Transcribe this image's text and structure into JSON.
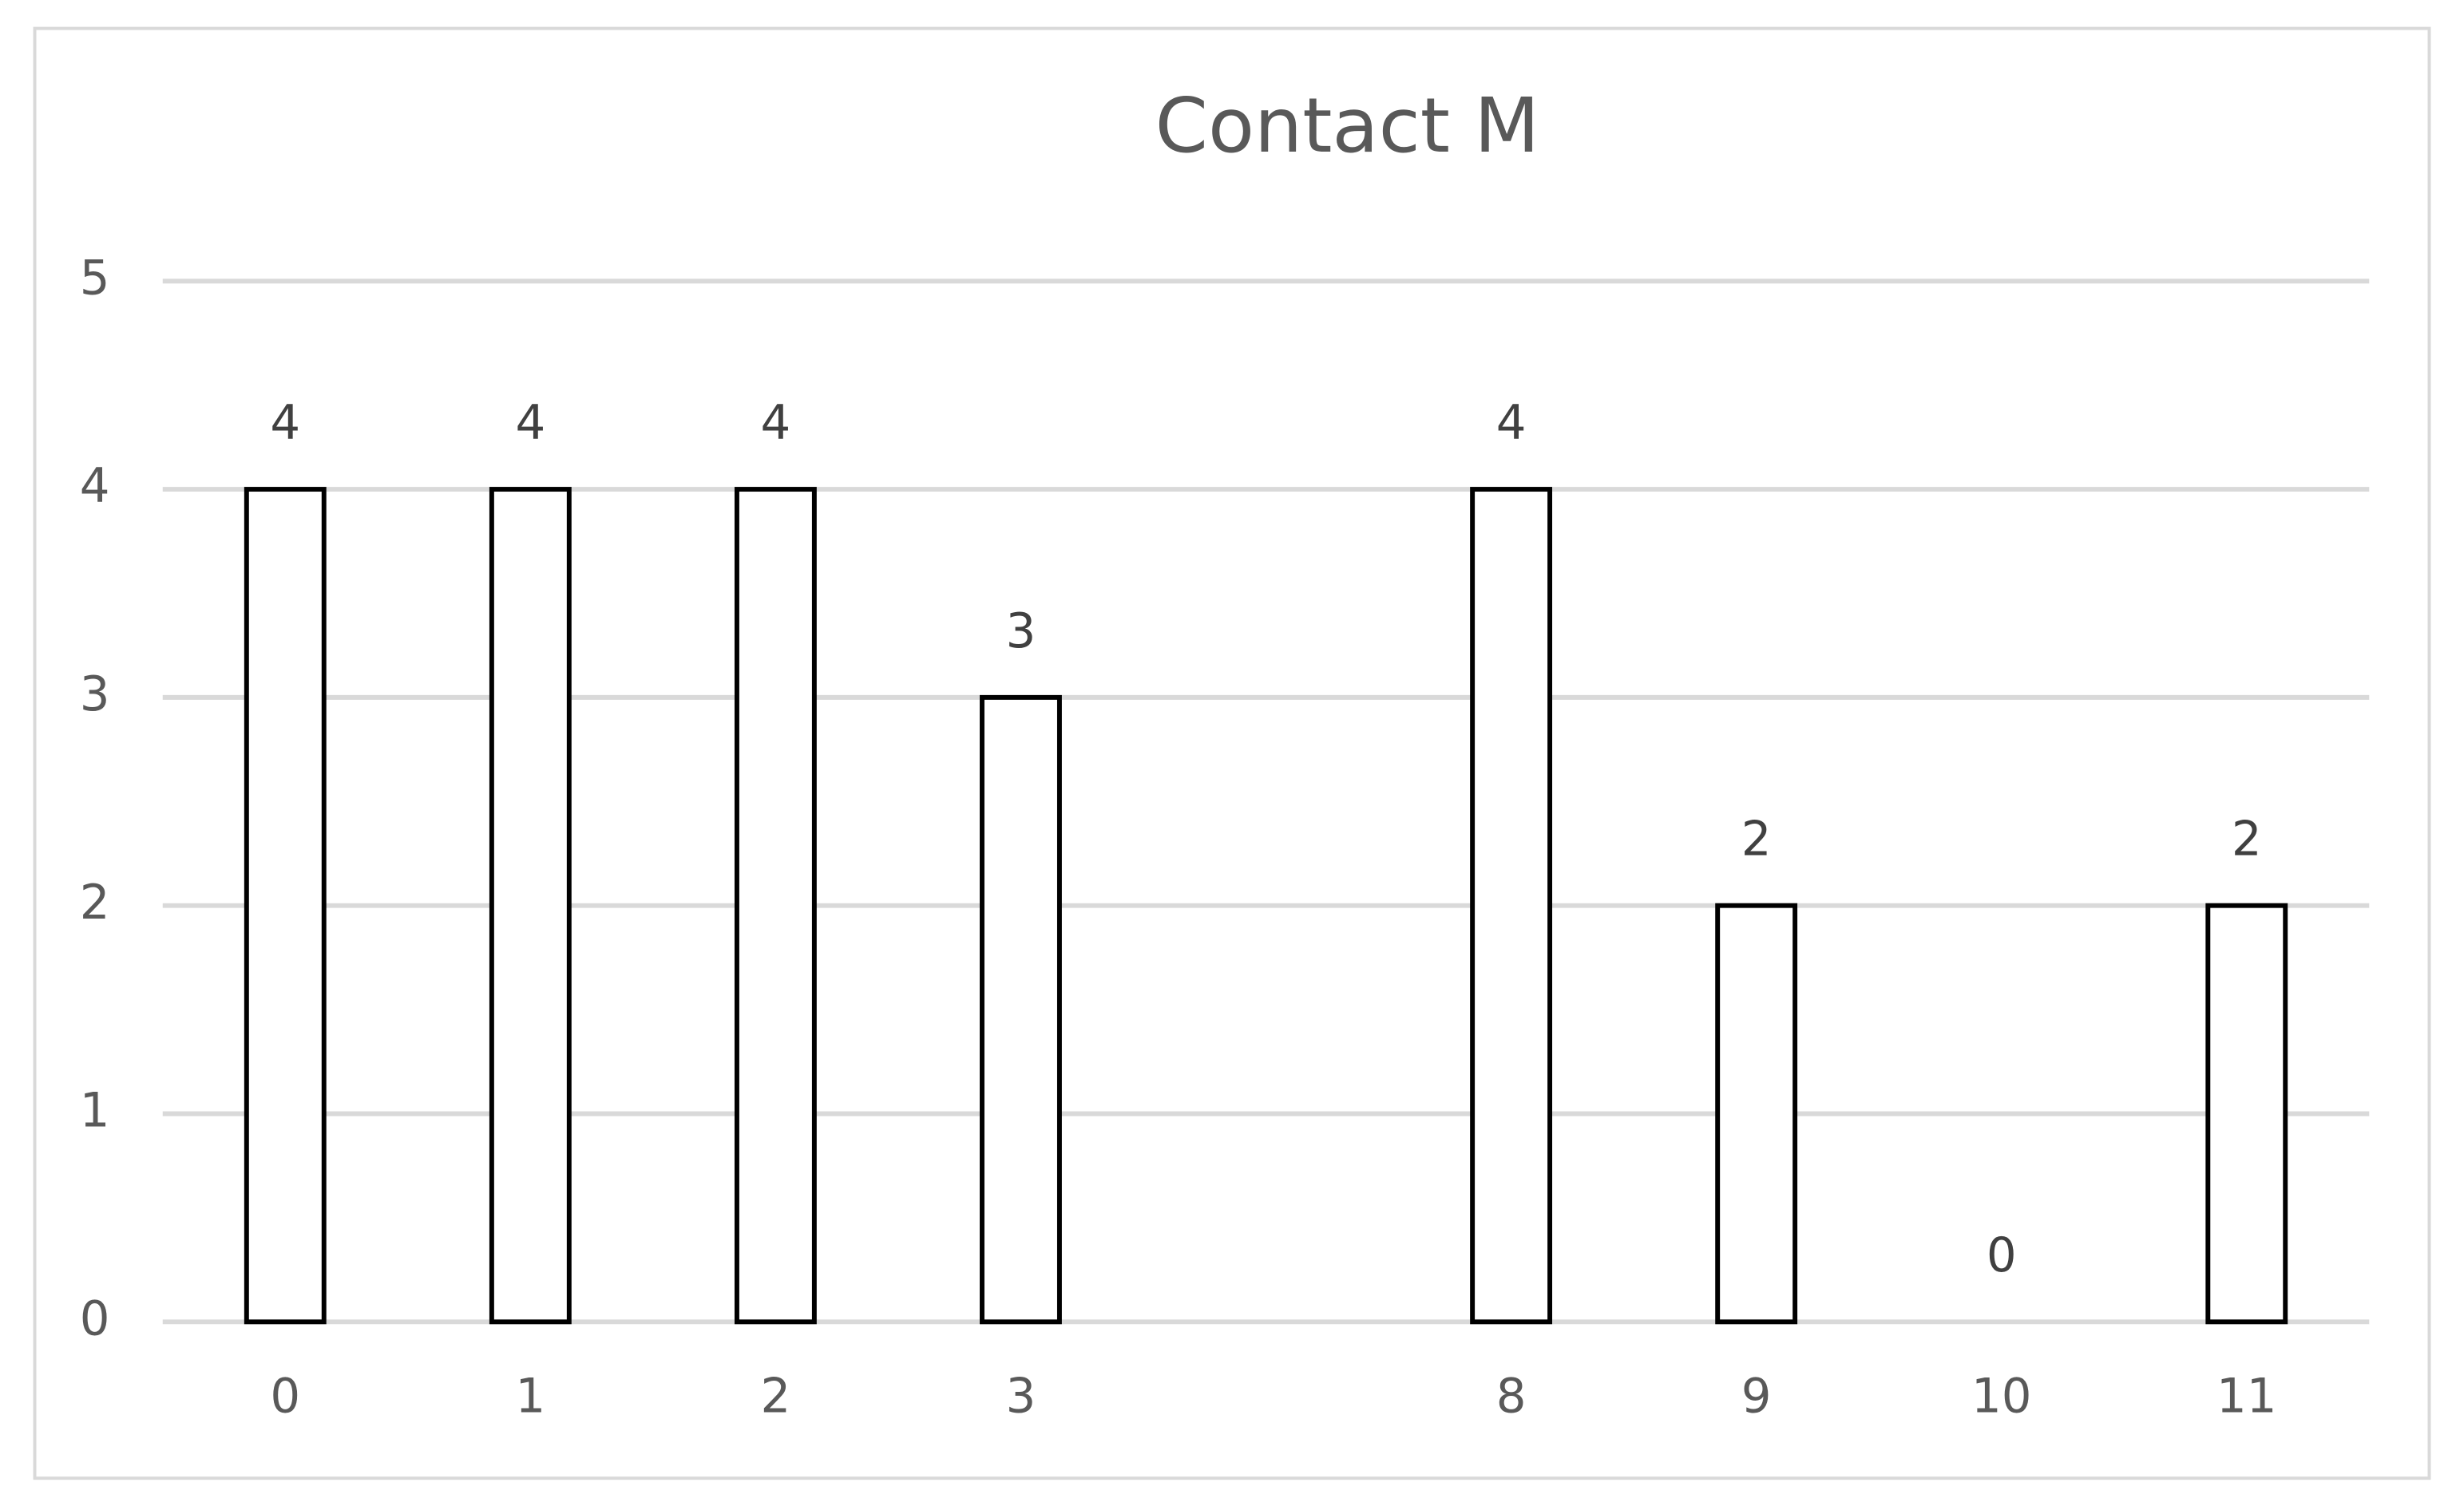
{
  "chart_data": {
    "type": "bar",
    "title": "Contact M",
    "categories": [
      "0",
      "1",
      "2",
      "3",
      null,
      "8",
      "9",
      "10",
      "11"
    ],
    "values": [
      4,
      4,
      4,
      3,
      null,
      4,
      2,
      0,
      2
    ],
    "color": "#ffffff",
    "edge_color": "#000000",
    "ylim": [
      0,
      5
    ],
    "yticks": [
      0,
      1,
      2,
      3,
      4,
      5
    ],
    "grid": true
  }
}
